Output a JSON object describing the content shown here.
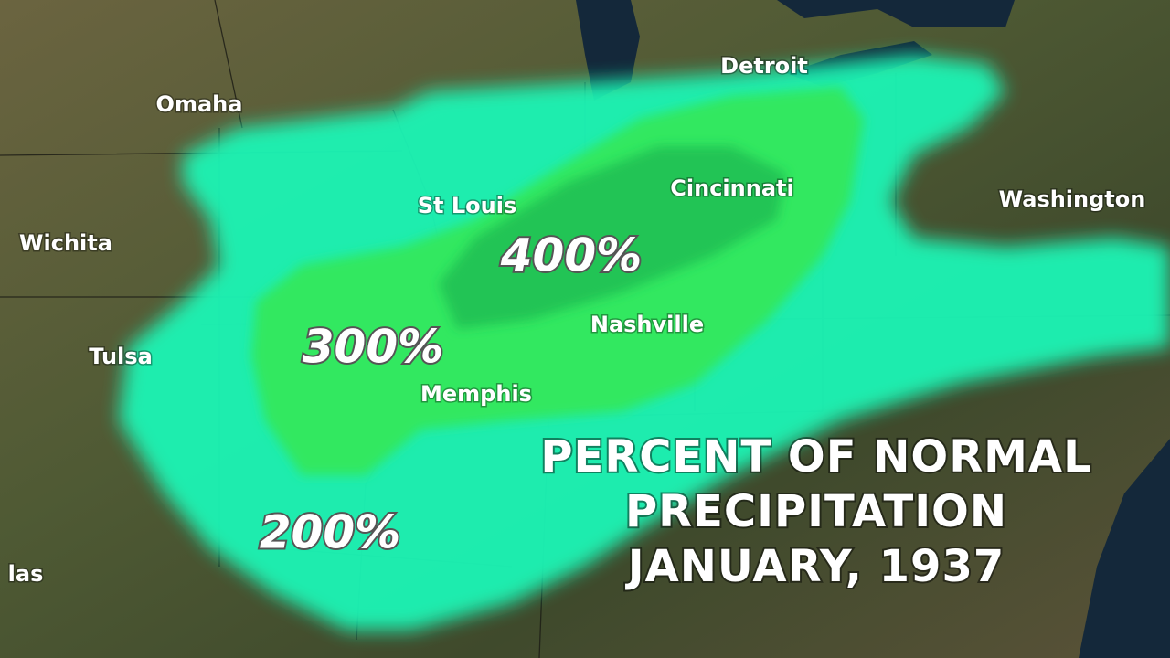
{
  "cities": [
    {
      "name": "Omaha"
    },
    {
      "name": "Wichita"
    },
    {
      "name": "Tulsa"
    },
    {
      "name": "las"
    },
    {
      "name": "St Louis"
    },
    {
      "name": "Detroit"
    },
    {
      "name": "Cincinnati"
    },
    {
      "name": "Washington"
    },
    {
      "name": "Nashville"
    },
    {
      "name": "Memphis"
    }
  ],
  "contours": [
    {
      "label": "200%"
    },
    {
      "label": "300%"
    },
    {
      "label": "400%"
    }
  ],
  "title": [
    "PERCENT OF NORMAL",
    "PRECIPITATION",
    "JANUARY, 1937"
  ]
}
